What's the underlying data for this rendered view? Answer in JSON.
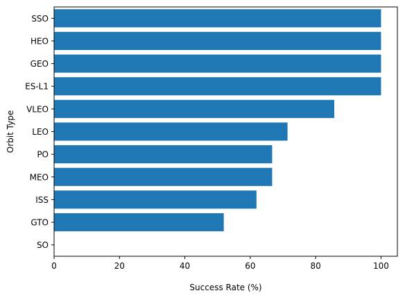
{
  "chart_data": {
    "type": "bar",
    "orientation": "horizontal",
    "title": "",
    "xlabel": "Success Rate (%)",
    "ylabel": "Orbit Type",
    "xlim": [
      0,
      105
    ],
    "xticks": [
      0,
      20,
      40,
      60,
      80,
      100
    ],
    "grid": false,
    "legend": "none",
    "bar_color": "#1f77b4",
    "categories": [
      "SSO",
      "HEO",
      "GEO",
      "ES-L1",
      "VLEO",
      "LEO",
      "PO",
      "MEO",
      "ISS",
      "GTO",
      "SO"
    ],
    "values": [
      100,
      100,
      100,
      100,
      85.7,
      71.4,
      66.7,
      66.7,
      61.9,
      51.9,
      0
    ]
  }
}
